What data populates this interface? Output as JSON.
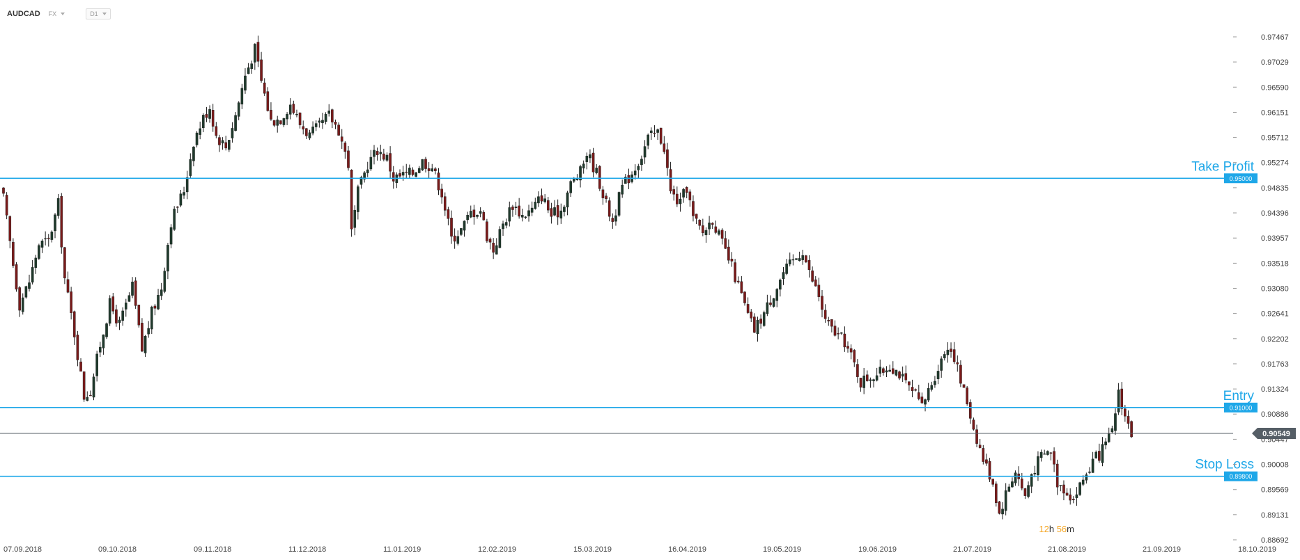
{
  "header": {
    "symbol": "AUDCAD",
    "market": "FX",
    "timeframe": "D1"
  },
  "countdown": {
    "hours": "12",
    "h_unit": "h",
    "minutes": "56",
    "m_unit": "m"
  },
  "colors": {
    "bull": "#1f3a2c",
    "bear": "#7a1a1a",
    "level": "#1ea7e8",
    "current": "#555e66"
  },
  "chart_data": {
    "type": "candlestick",
    "yaxis_ticks": [
      "0.97467",
      "0.97029",
      "0.96590",
      "0.96151",
      "0.95712",
      "0.95274",
      "0.94835",
      "0.94396",
      "0.93957",
      "0.93518",
      "0.93080",
      "0.92641",
      "0.92202",
      "0.91763",
      "0.91324",
      "0.90886",
      "0.90447",
      "0.90008",
      "0.89569",
      "0.89131",
      "0.88692"
    ],
    "xaxis_ticks": [
      "07.09.2018",
      "09.10.2018",
      "09.11.2018",
      "11.12.2018",
      "11.01.2019",
      "12.02.2019",
      "15.03.2019",
      "16.04.2019",
      "19.05.2019",
      "19.06.2019",
      "21.07.2019",
      "21.08.2019",
      "21.09.2019",
      "18.10.2019"
    ],
    "ylim": [
      0.88692,
      0.97467
    ],
    "levels": [
      {
        "name": "Take Profit",
        "value": 0.95,
        "tag": "0.95000"
      },
      {
        "name": "Entry",
        "value": 0.91,
        "tag": "0.91000"
      },
      {
        "name": "Stop Loss",
        "value": 0.898,
        "tag": "0.89800"
      }
    ],
    "current_price": {
      "value": 0.90549,
      "tag": "0.90549"
    },
    "anchors": [
      [
        0,
        0.9465
      ],
      [
        3,
        0.935
      ],
      [
        5,
        0.928
      ],
      [
        8,
        0.932
      ],
      [
        11,
        0.9385
      ],
      [
        14,
        0.939
      ],
      [
        17,
        0.9455
      ],
      [
        19,
        0.9325
      ],
      [
        22,
        0.923
      ],
      [
        25,
        0.912
      ],
      [
        27,
        0.913
      ],
      [
        30,
        0.921
      ],
      [
        33,
        0.928
      ],
      [
        36,
        0.9245
      ],
      [
        40,
        0.931
      ],
      [
        43,
        0.92
      ],
      [
        46,
        0.9265
      ],
      [
        49,
        0.931
      ],
      [
        52,
        0.9425
      ],
      [
        56,
        0.948
      ],
      [
        59,
        0.9565
      ],
      [
        62,
        0.9605
      ],
      [
        64,
        0.9625
      ],
      [
        66,
        0.9575
      ],
      [
        69,
        0.9555
      ],
      [
        72,
        0.961
      ],
      [
        75,
        0.968
      ],
      [
        78,
        0.9725
      ],
      [
        80,
        0.967
      ],
      [
        83,
        0.96
      ],
      [
        86,
        0.9605
      ],
      [
        89,
        0.963
      ],
      [
        92,
        0.9595
      ],
      [
        95,
        0.9575
      ],
      [
        98,
        0.959
      ],
      [
        101,
        0.961
      ],
      [
        104,
        0.9585
      ],
      [
        107,
        0.9525
      ],
      [
        108,
        0.9405
      ],
      [
        110,
        0.9475
      ],
      [
        113,
        0.9525
      ],
      [
        116,
        0.955
      ],
      [
        119,
        0.9535
      ],
      [
        121,
        0.95
      ],
      [
        124,
        0.9505
      ],
      [
        127,
        0.951
      ],
      [
        130,
        0.953
      ],
      [
        133,
        0.952
      ],
      [
        136,
        0.9475
      ],
      [
        139,
        0.9395
      ],
      [
        142,
        0.941
      ],
      [
        145,
        0.944
      ],
      [
        148,
        0.9445
      ],
      [
        150,
        0.94
      ],
      [
        152,
        0.9375
      ],
      [
        155,
        0.942
      ],
      [
        158,
        0.9455
      ],
      [
        161,
        0.9435
      ],
      [
        164,
        0.9445
      ],
      [
        167,
        0.947
      ],
      [
        170,
        0.9435
      ],
      [
        173,
        0.9445
      ],
      [
        176,
        0.949
      ],
      [
        179,
        0.951
      ],
      [
        181,
        0.9545
      ],
      [
        184,
        0.951
      ],
      [
        187,
        0.9455
      ],
      [
        189,
        0.9425
      ],
      [
        192,
        0.9485
      ],
      [
        195,
        0.951
      ],
      [
        198,
        0.954
      ],
      [
        200,
        0.957
      ],
      [
        203,
        0.958
      ],
      [
        205,
        0.9555
      ],
      [
        207,
        0.9475
      ],
      [
        210,
        0.9455
      ],
      [
        212,
        0.9485
      ],
      [
        214,
        0.943
      ],
      [
        217,
        0.9405
      ],
      [
        220,
        0.943
      ],
      [
        223,
        0.9385
      ],
      [
        226,
        0.9345
      ],
      [
        229,
        0.9295
      ],
      [
        231,
        0.926
      ],
      [
        233,
        0.9235
      ],
      [
        236,
        0.9265
      ],
      [
        239,
        0.93
      ],
      [
        242,
        0.9335
      ],
      [
        245,
        0.9355
      ],
      [
        248,
        0.9375
      ],
      [
        250,
        0.9335
      ],
      [
        253,
        0.9295
      ],
      [
        255,
        0.925
      ],
      [
        258,
        0.923
      ],
      [
        261,
        0.9215
      ],
      [
        264,
        0.9175
      ],
      [
        266,
        0.9145
      ],
      [
        269,
        0.9155
      ],
      [
        272,
        0.916
      ],
      [
        275,
        0.9175
      ],
      [
        278,
        0.916
      ],
      [
        280,
        0.914
      ],
      [
        283,
        0.912
      ],
      [
        285,
        0.91
      ],
      [
        287,
        0.913
      ],
      [
        290,
        0.917
      ],
      [
        293,
        0.921
      ],
      [
        295,
        0.919
      ],
      [
        297,
        0.9145
      ],
      [
        299,
        0.911
      ],
      [
        301,
        0.9065
      ],
      [
        304,
        0.901
      ],
      [
        307,
        0.897
      ],
      [
        309,
        0.8915
      ],
      [
        311,
        0.895
      ],
      [
        314,
        0.899
      ],
      [
        317,
        0.8945
      ],
      [
        319,
        0.8985
      ],
      [
        322,
        0.9015
      ],
      [
        325,
        0.9025
      ],
      [
        327,
        0.897
      ],
      [
        330,
        0.8955
      ],
      [
        332,
        0.894
      ],
      [
        335,
        0.8975
      ],
      [
        338,
        0.9005
      ],
      [
        341,
        0.9025
      ],
      [
        344,
        0.9055
      ],
      [
        346,
        0.913
      ],
      [
        348,
        0.9085
      ],
      [
        350,
        0.9055
      ]
    ]
  }
}
